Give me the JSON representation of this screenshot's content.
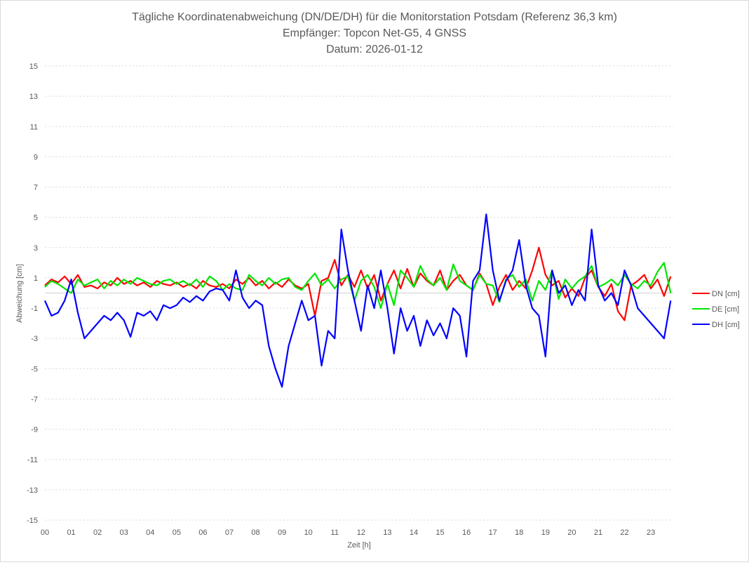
{
  "chart_data": {
    "type": "line",
    "title": "Tägliche Koordinatenabweichung (DN/DE/DH) für die Monitorstation Potsdam (Referenz 36,3 km)",
    "subtitle": "Empfänger: Topcon Net-G5, 4 GNSS",
    "date_line": "Datum: 2026-01-12",
    "xlabel": "Zeit [h]",
    "ylabel": "Abweichung [cm]",
    "xlim": [
      0,
      24
    ],
    "ylim": [
      -15,
      15
    ],
    "x_ticks": [
      "00",
      "01",
      "02",
      "03",
      "04",
      "05",
      "06",
      "07",
      "08",
      "09",
      "10",
      "11",
      "12",
      "13",
      "14",
      "15",
      "16",
      "17",
      "18",
      "19",
      "20",
      "21",
      "22",
      "23"
    ],
    "y_ticks": [
      15,
      13,
      11,
      9,
      7,
      5,
      3,
      1,
      -1,
      -3,
      -5,
      -7,
      -9,
      -11,
      -13,
      -15
    ],
    "grid": true,
    "legend_position": "right",
    "x_step_hours": 0.25,
    "series": [
      {
        "name": "DN [cm]",
        "color": "#ff0000",
        "values": [
          0.5,
          0.9,
          0.7,
          1.1,
          0.6,
          1.2,
          0.4,
          0.5,
          0.3,
          0.7,
          0.5,
          1.0,
          0.6,
          0.8,
          0.5,
          0.7,
          0.4,
          0.8,
          0.6,
          0.5,
          0.7,
          0.4,
          0.6,
          0.3,
          0.8,
          0.5,
          0.4,
          0.6,
          0.3,
          0.9,
          0.6,
          1.0,
          0.5,
          0.8,
          0.3,
          0.7,
          0.4,
          0.9,
          0.5,
          0.3,
          0.6,
          -1.5,
          0.8,
          1.0,
          2.2,
          0.5,
          1.2,
          0.4,
          1.5,
          0.3,
          1.2,
          -0.5,
          0.6,
          1.5,
          0.3,
          1.6,
          0.4,
          1.3,
          0.8,
          0.5,
          1.5,
          0.2,
          0.8,
          1.2,
          0.5,
          0.2,
          1.3,
          0.6,
          -0.8,
          0.4,
          1.2,
          0.2,
          0.8,
          0.3,
          1.5,
          3.0,
          1.2,
          0.5,
          0.8,
          -0.3,
          0.3,
          -0.2,
          1.0,
          1.5,
          0.4,
          -0.2,
          0.6,
          -1.2,
          -1.8,
          0.5,
          0.8,
          1.2,
          0.3,
          0.9,
          -0.2,
          1.1
        ]
      },
      {
        "name": "DE [cm]",
        "color": "#00e600",
        "values": [
          0.4,
          0.8,
          0.6,
          0.3,
          0.0,
          0.9,
          0.5,
          0.7,
          0.9,
          0.3,
          0.8,
          0.5,
          0.9,
          0.6,
          1.0,
          0.8,
          0.6,
          0.5,
          0.8,
          0.9,
          0.6,
          0.8,
          0.5,
          0.9,
          0.4,
          1.1,
          0.8,
          0.2,
          0.6,
          0.3,
          0.2,
          1.2,
          0.8,
          0.5,
          1.0,
          0.6,
          0.9,
          1.0,
          0.4,
          0.2,
          0.8,
          1.3,
          0.5,
          0.9,
          0.3,
          0.9,
          1.1,
          -0.5,
          0.8,
          1.2,
          0.4,
          -1.0,
          0.6,
          -0.8,
          1.5,
          1.0,
          0.4,
          1.8,
          0.9,
          0.5,
          1.0,
          0.2,
          1.9,
          0.8,
          0.5,
          0.2,
          1.2,
          0.6,
          0.5,
          -0.6,
          0.9,
          1.2,
          0.4,
          0.9,
          -0.5,
          0.8,
          0.2,
          1.5,
          -0.4,
          0.9,
          0.3,
          0.8,
          1.1,
          1.8,
          0.4,
          0.6,
          0.9,
          0.5,
          1.2,
          0.6,
          0.3,
          0.8,
          0.5,
          1.4,
          2.0,
          0.0
        ]
      },
      {
        "name": "DH [cm]",
        "color": "#0000ff",
        "values": [
          -0.5,
          -1.5,
          -1.3,
          -0.5,
          0.9,
          -1.3,
          -3.0,
          -2.5,
          -2.0,
          -1.5,
          -1.8,
          -1.3,
          -1.8,
          -2.9,
          -1.3,
          -1.5,
          -1.2,
          -1.8,
          -0.8,
          -1.0,
          -0.8,
          -0.3,
          -0.6,
          -0.2,
          -0.5,
          0.1,
          0.3,
          0.2,
          -0.5,
          1.5,
          -0.3,
          -1.0,
          -0.5,
          -0.8,
          -3.5,
          -5.0,
          -6.2,
          -3.5,
          -2.0,
          -0.5,
          -1.8,
          -1.5,
          -4.8,
          -2.5,
          -3.0,
          4.2,
          1.5,
          -0.5,
          -2.5,
          0.5,
          -1.0,
          1.5,
          -1.0,
          -4.0,
          -1.0,
          -2.5,
          -1.5,
          -3.5,
          -1.8,
          -2.8,
          -2.0,
          -3.0,
          -1.0,
          -1.5,
          -4.2,
          0.8,
          1.5,
          5.2,
          1.5,
          -0.5,
          0.8,
          1.5,
          3.5,
          0.5,
          -1.0,
          -1.5,
          -4.2,
          1.5,
          0.0,
          0.5,
          -0.8,
          0.2,
          -0.5,
          4.2,
          0.5,
          -0.5,
          0.0,
          -0.8,
          1.5,
          0.5,
          -1.0,
          -1.5,
          -2.0,
          -2.5,
          -3.0,
          -0.5
        ]
      }
    ]
  }
}
